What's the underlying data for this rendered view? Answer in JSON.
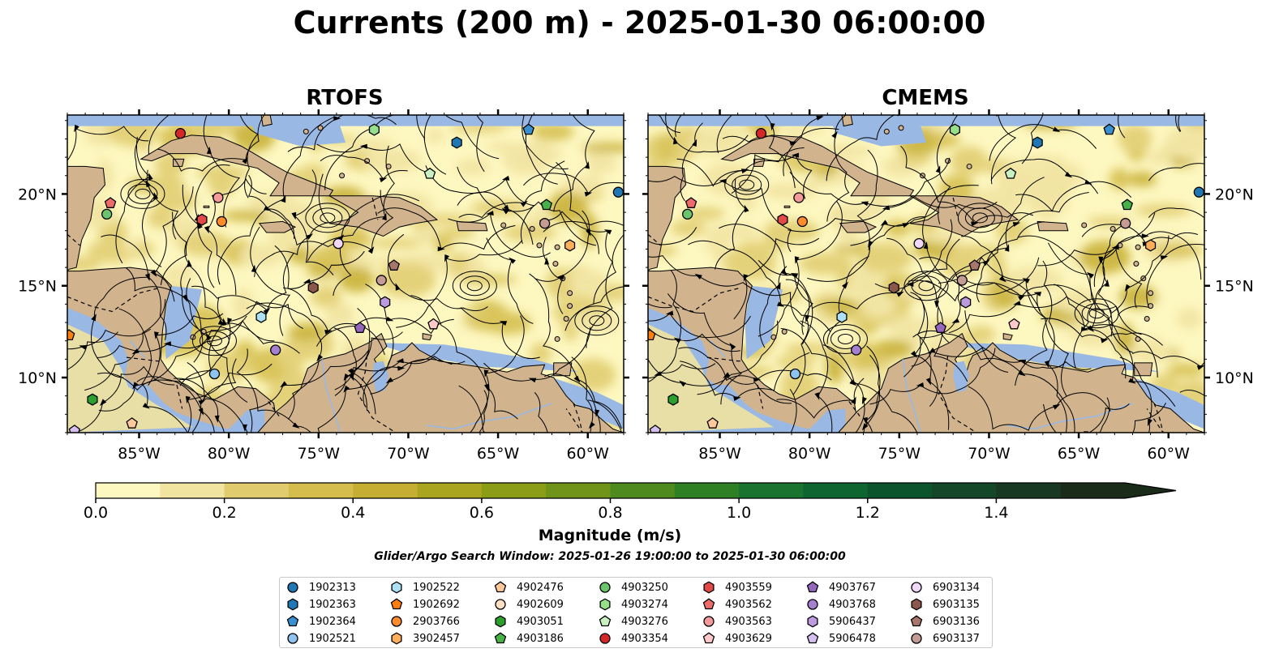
{
  "title": "Currents (200 m) - 2025-01-30 06:00:00",
  "colorbar": {
    "label": "Magnitude (m/s)",
    "ticks": [
      "0.0",
      "0.2",
      "0.4",
      "0.6",
      "0.8",
      "1.0",
      "1.2",
      "1.4"
    ],
    "range": [
      0,
      1.6
    ],
    "colors": [
      "#fdf7c0",
      "#f1e3a0",
      "#e0cc6e",
      "#d4bd4c",
      "#c6ae33",
      "#a9a51f",
      "#8b9d16",
      "#6f9419",
      "#4f8a1e",
      "#2f7f25",
      "#1a7430",
      "#0e6530",
      "#0c552c",
      "#144628",
      "#193823",
      "#1a2b1a"
    ]
  },
  "search_window": "Glider/Argo Search Window: 2025-01-26 19:00:00 to 2025-01-30 06:00:00",
  "colors": {
    "water": "#9ab8e4",
    "land": "#d1b48d",
    "frame": "#000000"
  },
  "chart_data": [
    {
      "type": "heatmap",
      "title": "RTOFS",
      "x_ticks": [
        "85°W",
        "80°W",
        "75°W",
        "70°W",
        "65°W",
        "60°W"
      ],
      "x_tick_values": [
        -85,
        -80,
        -75,
        -70,
        -65,
        -60
      ],
      "y_ticks": [
        "10°N",
        "15°N",
        "20°N"
      ],
      "y_tick_values": [
        10,
        15,
        20
      ],
      "xlim": [
        -89,
        -58
      ],
      "ylim": [
        7,
        24.3
      ],
      "grid": false,
      "overlay": "streamlines",
      "points": [
        {
          "id": "4903354",
          "lon": -82.7,
          "lat": 23.3
        },
        {
          "id": "4903274",
          "lon": -71.9,
          "lat": 23.5
        },
        {
          "id": "1902364",
          "lon": -63.3,
          "lat": 23.5
        },
        {
          "id": "1902363",
          "lon": -67.3,
          "lat": 22.8
        },
        {
          "id": "4903276",
          "lon": -68.8,
          "lat": 21.1
        },
        {
          "id": "1902313",
          "lon": -58.3,
          "lat": 20.1
        },
        {
          "id": "4903562",
          "lon": -86.6,
          "lat": 19.5
        },
        {
          "id": "4903250",
          "lon": -86.8,
          "lat": 18.9
        },
        {
          "id": "4903563",
          "lon": -80.6,
          "lat": 19.8
        },
        {
          "id": "4903559",
          "lon": -81.5,
          "lat": 18.6
        },
        {
          "id": "2903766",
          "lon": -80.4,
          "lat": 18.5
        },
        {
          "id": "4903186",
          "lon": -62.3,
          "lat": 19.4
        },
        {
          "id": "6903137",
          "lon": -62.4,
          "lat": 18.4
        },
        {
          "id": "3902457",
          "lon": -61.0,
          "lat": 17.2
        },
        {
          "id": "6903134",
          "lon": -73.9,
          "lat": 17.3
        },
        {
          "id": "6903136",
          "lon": -70.8,
          "lat": 16.1
        },
        {
          "id": "6903137",
          "lon": -71.5,
          "lat": 15.3
        },
        {
          "id": "6903135",
          "lon": -75.3,
          "lat": 14.9
        },
        {
          "id": "5906437",
          "lon": -71.3,
          "lat": 14.1
        },
        {
          "id": "1902522",
          "lon": -78.2,
          "lat": 13.3
        },
        {
          "id": "4903767",
          "lon": -72.7,
          "lat": 12.7
        },
        {
          "id": "4903629",
          "lon": -68.6,
          "lat": 12.9
        },
        {
          "id": "4903768",
          "lon": -77.4,
          "lat": 11.5
        },
        {
          "id": "1902521",
          "lon": -80.8,
          "lat": 10.2
        },
        {
          "id": "1902692",
          "lon": -88.9,
          "lat": 12.3
        },
        {
          "id": "4903051",
          "lon": -87.6,
          "lat": 8.8
        },
        {
          "id": "4902476",
          "lon": -85.4,
          "lat": 7.5
        },
        {
          "id": "5906478",
          "lon": -88.6,
          "lat": 7.1
        }
      ]
    },
    {
      "type": "heatmap",
      "title": "CMEMS",
      "x_ticks": [
        "85°W",
        "80°W",
        "75°W",
        "70°W",
        "65°W",
        "60°W"
      ],
      "x_tick_values": [
        -85,
        -80,
        -75,
        -70,
        -65,
        -60
      ],
      "y_ticks": [
        "10°N",
        "15°N",
        "20°N"
      ],
      "y_tick_values": [
        10,
        15,
        20
      ],
      "xlim": [
        -89,
        -58
      ],
      "ylim": [
        7,
        24.3
      ],
      "grid": false,
      "overlay": "streamlines",
      "points": [
        {
          "id": "4903354",
          "lon": -82.7,
          "lat": 23.3
        },
        {
          "id": "4903274",
          "lon": -71.9,
          "lat": 23.5
        },
        {
          "id": "1902364",
          "lon": -63.3,
          "lat": 23.5
        },
        {
          "id": "1902363",
          "lon": -67.3,
          "lat": 22.8
        },
        {
          "id": "4903276",
          "lon": -68.8,
          "lat": 21.1
        },
        {
          "id": "1902313",
          "lon": -58.3,
          "lat": 20.1
        },
        {
          "id": "4903562",
          "lon": -86.6,
          "lat": 19.5
        },
        {
          "id": "4903250",
          "lon": -86.8,
          "lat": 18.9
        },
        {
          "id": "4903563",
          "lon": -80.6,
          "lat": 19.8
        },
        {
          "id": "4903559",
          "lon": -81.5,
          "lat": 18.6
        },
        {
          "id": "2903766",
          "lon": -80.4,
          "lat": 18.5
        },
        {
          "id": "4903186",
          "lon": -62.3,
          "lat": 19.4
        },
        {
          "id": "6903137",
          "lon": -62.4,
          "lat": 18.4
        },
        {
          "id": "3902457",
          "lon": -61.0,
          "lat": 17.2
        },
        {
          "id": "6903134",
          "lon": -73.9,
          "lat": 17.3
        },
        {
          "id": "6903136",
          "lon": -70.8,
          "lat": 16.1
        },
        {
          "id": "6903137",
          "lon": -71.5,
          "lat": 15.3
        },
        {
          "id": "6903135",
          "lon": -75.3,
          "lat": 14.9
        },
        {
          "id": "5906437",
          "lon": -71.3,
          "lat": 14.1
        },
        {
          "id": "1902522",
          "lon": -78.2,
          "lat": 13.3
        },
        {
          "id": "4903767",
          "lon": -72.7,
          "lat": 12.7
        },
        {
          "id": "4903629",
          "lon": -68.6,
          "lat": 12.9
        },
        {
          "id": "4903768",
          "lon": -77.4,
          "lat": 11.5
        },
        {
          "id": "1902521",
          "lon": -80.8,
          "lat": 10.2
        },
        {
          "id": "1902692",
          "lon": -88.9,
          "lat": 12.3
        },
        {
          "id": "4903051",
          "lon": -87.6,
          "lat": 8.8
        },
        {
          "id": "4902476",
          "lon": -85.4,
          "lat": 7.5
        },
        {
          "id": "5906478",
          "lon": -88.6,
          "lat": 7.1
        }
      ]
    }
  ],
  "legend": [
    {
      "id": "1902313",
      "marker": "circle",
      "color": "#1f77b4"
    },
    {
      "id": "1902363",
      "marker": "hexagon",
      "color": "#1f77b4"
    },
    {
      "id": "1902364",
      "marker": "pentagon",
      "color": "#3a8fd0"
    },
    {
      "id": "1902521",
      "marker": "circle",
      "color": "#8ec3ee"
    },
    {
      "id": "1902522",
      "marker": "hexagon",
      "color": "#aee0f5"
    },
    {
      "id": "1902692",
      "marker": "pentagon",
      "color": "#ff7f0e"
    },
    {
      "id": "2903766",
      "marker": "circle",
      "color": "#ff8c2a"
    },
    {
      "id": "3902457",
      "marker": "hexagon",
      "color": "#ffae5a"
    },
    {
      "id": "4902476",
      "marker": "pentagon",
      "color": "#ffc89a"
    },
    {
      "id": "4902609",
      "marker": "circle",
      "color": "#ffe0c4"
    },
    {
      "id": "4903051",
      "marker": "hexagon",
      "color": "#2ca02c"
    },
    {
      "id": "4903186",
      "marker": "pentagon",
      "color": "#47b347"
    },
    {
      "id": "4903250",
      "marker": "circle",
      "color": "#6cc56c"
    },
    {
      "id": "4903274",
      "marker": "hexagon",
      "color": "#98df8a"
    },
    {
      "id": "4903276",
      "marker": "pentagon",
      "color": "#c8f0c0"
    },
    {
      "id": "4903354",
      "marker": "circle",
      "color": "#d62728"
    },
    {
      "id": "4903559",
      "marker": "hexagon",
      "color": "#e24a4a"
    },
    {
      "id": "4903562",
      "marker": "pentagon",
      "color": "#ee6b6b"
    },
    {
      "id": "4903563",
      "marker": "circle",
      "color": "#f49a9a"
    },
    {
      "id": "4903629",
      "marker": "pentagon",
      "color": "#ffc9c9"
    },
    {
      "id": "4903767",
      "marker": "pentagon",
      "color": "#9467bd"
    },
    {
      "id": "4903768",
      "marker": "circle",
      "color": "#a680d0"
    },
    {
      "id": "5906437",
      "marker": "hexagon",
      "color": "#bb9ade"
    },
    {
      "id": "5906478",
      "marker": "pentagon",
      "color": "#d4bff0"
    },
    {
      "id": "6903134",
      "marker": "circle",
      "color": "#f0d8f8"
    },
    {
      "id": "6903135",
      "marker": "hexagon",
      "color": "#8c564b"
    },
    {
      "id": "6903136",
      "marker": "pentagon",
      "color": "#a8776b"
    },
    {
      "id": "6903137",
      "marker": "circle",
      "color": "#c49c94"
    }
  ]
}
